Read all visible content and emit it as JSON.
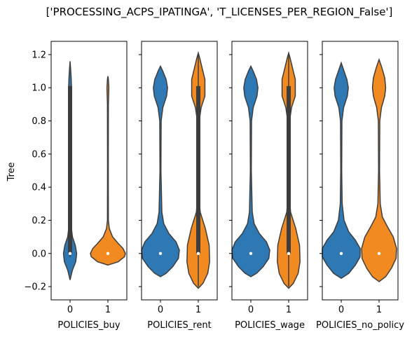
{
  "chart_data": {
    "type": "violin",
    "title": "['PROCESSING_ACPS_IPATINGA', 'T_LICENSES_PER_REGION_False']",
    "ylabel": "Tree",
    "ylim": [
      -0.28,
      1.28
    ],
    "yticks": [
      -0.2,
      0.0,
      0.2,
      0.4,
      0.6,
      0.8,
      1.0,
      1.2
    ],
    "ytick_labels": [
      "−0.2",
      "0.0",
      "0.2",
      "0.4",
      "0.6",
      "0.8",
      "1.0",
      "1.2"
    ],
    "categories": [
      "0",
      "1"
    ],
    "colors": {
      "0": "#2e78b4",
      "1": "#f28a22"
    },
    "panels": [
      {
        "xlabel": "POLICIES_buy",
        "violins": [
          {
            "category": "0",
            "ymin": -0.16,
            "ymax": 1.16,
            "median": 0.0,
            "box": [
              0.0,
              1.01
            ],
            "whisker": [
              -0.02,
              1.01
            ],
            "profile": [
              [
                -0.16,
                0
              ],
              [
                -0.1,
                0.05
              ],
              [
                -0.05,
                0.12
              ],
              [
                0.0,
                0.14
              ],
              [
                0.05,
                0.11
              ],
              [
                0.1,
                0.05
              ],
              [
                0.15,
                0.03
              ],
              [
                0.3,
                0.025
              ],
              [
                0.5,
                0.022
              ],
              [
                0.7,
                0.022
              ],
              [
                0.9,
                0.025
              ],
              [
                1.0,
                0.03
              ],
              [
                1.05,
                0.025
              ],
              [
                1.1,
                0.015
              ],
              [
                1.16,
                0
              ]
            ]
          },
          {
            "category": "1",
            "ymin": -0.07,
            "ymax": 1.07,
            "median": 0.0,
            "box": [
              0.0,
              0.0
            ],
            "whisker": [
              0.0,
              0.0
            ],
            "profile": [
              [
                -0.07,
                0
              ],
              [
                -0.05,
                0.22
              ],
              [
                -0.02,
                0.35
              ],
              [
                0.0,
                0.37
              ],
              [
                0.03,
                0.32
              ],
              [
                0.06,
                0.22
              ],
              [
                0.1,
                0.1
              ],
              [
                0.15,
                0.03
              ],
              [
                0.2,
                0.01
              ],
              [
                0.5,
                0.008
              ],
              [
                0.9,
                0.01
              ],
              [
                1.0,
                0.02
              ],
              [
                1.05,
                0.01
              ],
              [
                1.07,
                0
              ]
            ]
          }
        ]
      },
      {
        "xlabel": "POLICIES_rent",
        "violins": [
          {
            "category": "0",
            "ymin": -0.14,
            "ymax": 1.13,
            "median": 0.0,
            "box": [
              0.0,
              0.0
            ],
            "whisker": [
              0.0,
              0.0
            ],
            "profile": [
              [
                -0.14,
                0
              ],
              [
                -0.12,
                0.12
              ],
              [
                -0.08,
                0.26
              ],
              [
                -0.03,
                0.38
              ],
              [
                0.02,
                0.4
              ],
              [
                0.07,
                0.33
              ],
              [
                0.12,
                0.18
              ],
              [
                0.18,
                0.07
              ],
              [
                0.25,
                0.03
              ],
              [
                0.5,
                0.01
              ],
              [
                0.8,
                0.015
              ],
              [
                0.88,
                0.05
              ],
              [
                0.95,
                0.13
              ],
              [
                1.0,
                0.15
              ],
              [
                1.05,
                0.12
              ],
              [
                1.1,
                0.05
              ],
              [
                1.13,
                0
              ]
            ]
          },
          {
            "category": "1",
            "ymin": -0.21,
            "ymax": 1.21,
            "median": 0.0,
            "box": [
              0.0,
              1.01
            ],
            "whisker": [
              -0.2,
              1.2
            ],
            "profile": [
              [
                -0.21,
                0
              ],
              [
                -0.18,
                0.1
              ],
              [
                -0.12,
                0.2
              ],
              [
                -0.05,
                0.24
              ],
              [
                0.05,
                0.23
              ],
              [
                0.15,
                0.15
              ],
              [
                0.25,
                0.04
              ],
              [
                0.35,
                0.015
              ],
              [
                0.6,
                0.01
              ],
              [
                0.8,
                0.02
              ],
              [
                0.88,
                0.06
              ],
              [
                0.95,
                0.14
              ],
              [
                1.05,
                0.14
              ],
              [
                1.12,
                0.08
              ],
              [
                1.18,
                0.03
              ],
              [
                1.21,
                0
              ]
            ]
          }
        ]
      },
      {
        "xlabel": "POLICIES_wage",
        "violins": [
          {
            "category": "0",
            "ymin": -0.14,
            "ymax": 1.13,
            "median": 0.0,
            "box": [
              0.0,
              0.0
            ],
            "whisker": [
              0.0,
              0.0
            ],
            "profile": [
              [
                -0.14,
                0
              ],
              [
                -0.12,
                0.12
              ],
              [
                -0.08,
                0.26
              ],
              [
                -0.03,
                0.38
              ],
              [
                0.02,
                0.4
              ],
              [
                0.07,
                0.33
              ],
              [
                0.12,
                0.18
              ],
              [
                0.18,
                0.07
              ],
              [
                0.25,
                0.03
              ],
              [
                0.5,
                0.01
              ],
              [
                0.8,
                0.015
              ],
              [
                0.88,
                0.05
              ],
              [
                0.95,
                0.13
              ],
              [
                1.0,
                0.15
              ],
              [
                1.05,
                0.12
              ],
              [
                1.1,
                0.05
              ],
              [
                1.13,
                0
              ]
            ]
          },
          {
            "category": "1",
            "ymin": -0.21,
            "ymax": 1.21,
            "median": 0.0,
            "box": [
              0.0,
              1.01
            ],
            "whisker": [
              -0.2,
              1.2
            ],
            "profile": [
              [
                -0.21,
                0
              ],
              [
                -0.18,
                0.1
              ],
              [
                -0.12,
                0.2
              ],
              [
                -0.05,
                0.24
              ],
              [
                0.05,
                0.23
              ],
              [
                0.15,
                0.15
              ],
              [
                0.25,
                0.04
              ],
              [
                0.35,
                0.015
              ],
              [
                0.6,
                0.01
              ],
              [
                0.8,
                0.02
              ],
              [
                0.88,
                0.06
              ],
              [
                0.95,
                0.14
              ],
              [
                1.05,
                0.14
              ],
              [
                1.12,
                0.08
              ],
              [
                1.18,
                0.03
              ],
              [
                1.21,
                0
              ]
            ]
          }
        ]
      },
      {
        "xlabel": "POLICIES_no_policy",
        "violins": [
          {
            "category": "0",
            "ymin": -0.15,
            "ymax": 1.15,
            "median": 0.0,
            "box": [
              0.0,
              0.0
            ],
            "whisker": [
              0.0,
              0.0
            ],
            "profile": [
              [
                -0.15,
                0
              ],
              [
                -0.12,
                0.16
              ],
              [
                -0.07,
                0.3
              ],
              [
                -0.02,
                0.4
              ],
              [
                0.03,
                0.4
              ],
              [
                0.08,
                0.3
              ],
              [
                0.13,
                0.16
              ],
              [
                0.2,
                0.06
              ],
              [
                0.3,
                0.02
              ],
              [
                0.5,
                0.01
              ],
              [
                0.8,
                0.015
              ],
              [
                0.88,
                0.05
              ],
              [
                0.95,
                0.13
              ],
              [
                1.0,
                0.15
              ],
              [
                1.05,
                0.12
              ],
              [
                1.1,
                0.06
              ],
              [
                1.15,
                0
              ]
            ]
          },
          {
            "category": "1",
            "ymin": -0.17,
            "ymax": 1.17,
            "median": 0.0,
            "box": [
              0.0,
              0.0
            ],
            "whisker": [
              0.0,
              0.0
            ],
            "profile": [
              [
                -0.17,
                0
              ],
              [
                -0.14,
                0.14
              ],
              [
                -0.09,
                0.26
              ],
              [
                -0.03,
                0.36
              ],
              [
                0.03,
                0.37
              ],
              [
                0.1,
                0.3
              ],
              [
                0.16,
                0.18
              ],
              [
                0.22,
                0.07
              ],
              [
                0.3,
                0.025
              ],
              [
                0.5,
                0.01
              ],
              [
                0.8,
                0.015
              ],
              [
                0.88,
                0.05
              ],
              [
                0.95,
                0.12
              ],
              [
                1.0,
                0.14
              ],
              [
                1.06,
                0.12
              ],
              [
                1.12,
                0.06
              ],
              [
                1.17,
                0
              ]
            ]
          }
        ]
      }
    ]
  }
}
